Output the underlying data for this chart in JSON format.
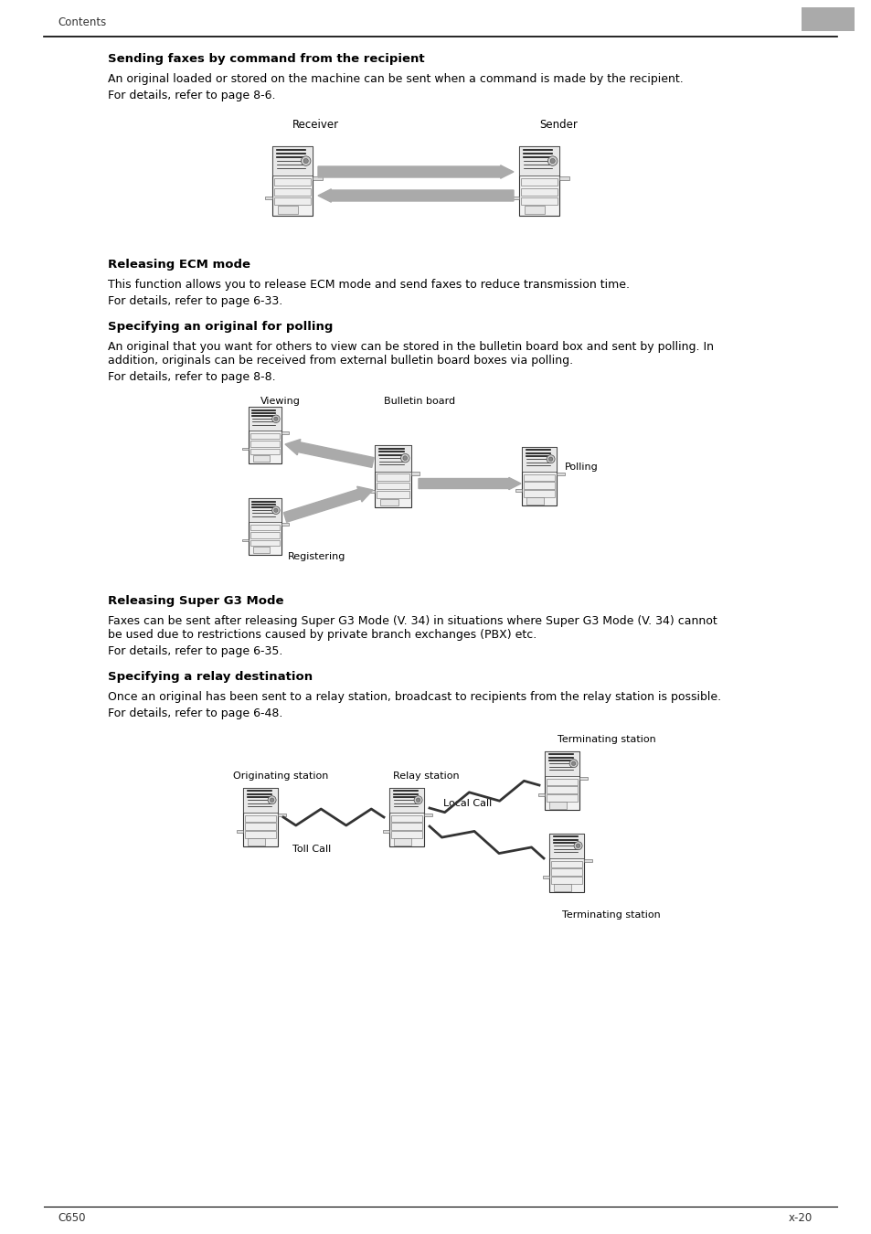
{
  "bg_color": "#ffffff",
  "header_text": "Contents",
  "footer_left": "C650",
  "footer_right": "x-20",
  "section1_title": "Sending faxes by command from the recipient",
  "section1_body1": "An original loaded or stored on the machine can be sent when a command is made by the recipient.",
  "section1_body2": "For details, refer to page 8-6.",
  "section1_receiver_label": "Receiver",
  "section1_sender_label": "Sender",
  "section2_title": "Releasing ECM mode",
  "section2_body1": "This function allows you to release ECM mode and send faxes to reduce transmission time.",
  "section2_body2": "For details, refer to page 6-33.",
  "section3_title": "Specifying an original for polling",
  "section3_body1a": "An original that you want for others to view can be stored in the bulletin board box and sent by polling. In",
  "section3_body1b": "addition, originals can be received from external bulletin board boxes via polling.",
  "section3_body2": "For details, refer to page 8-8.",
  "section3_viewing_label": "Viewing",
  "section3_bulletin_label": "Bulletin board",
  "section3_polling_label": "Polling",
  "section3_registering_label": "Registering",
  "section4_title": "Releasing Super G3 Mode",
  "section4_body1a": "Faxes can be sent after releasing Super G3 Mode (V. 34) in situations where Super G3 Mode (V. 34) cannot",
  "section4_body1b": "be used due to restrictions caused by private branch exchanges (PBX) etc.",
  "section4_body2": "For details, refer to page 6-35.",
  "section5_title": "Specifying a relay destination",
  "section5_body1": "Once an original has been sent to a relay station, broadcast to recipients from the relay station is possible.",
  "section5_body2": "For details, refer to page 6-48.",
  "section5_originating_label": "Originating station",
  "section5_relay_label": "Relay station",
  "section5_toll_label": "Toll Call",
  "section5_local_label": "Local Call",
  "section5_terminating1_label": "Terminating station",
  "section5_terminating2_label": "Terminating station",
  "gray_box_color": "#aaaaaa",
  "arrow_fill_color": "#999999",
  "text_color": "#000000"
}
